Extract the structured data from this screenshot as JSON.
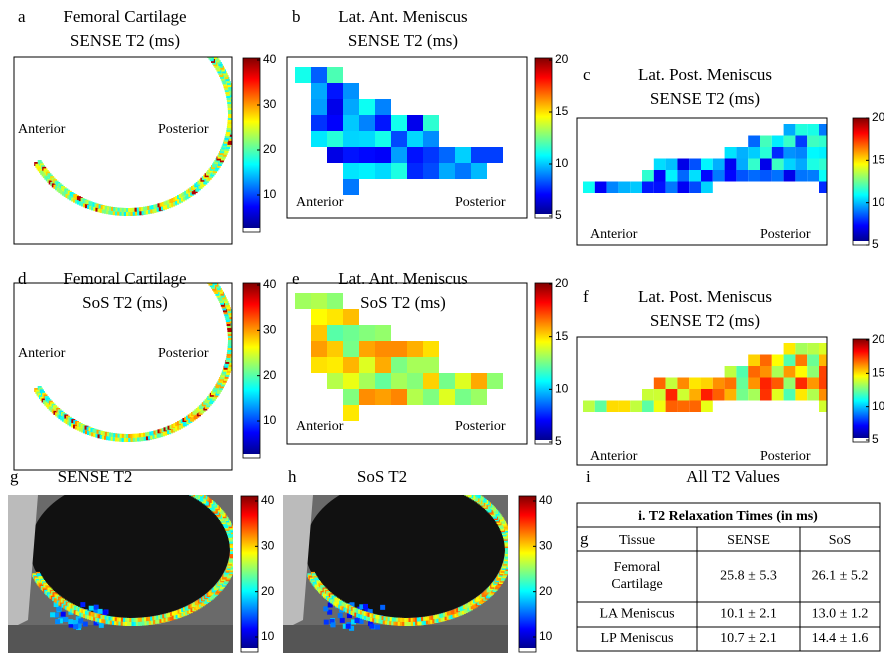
{
  "panels": [
    {
      "letter": "a",
      "title": [
        "Femoral Cartilage",
        "SENSE T2 (ms)"
      ],
      "labels": [
        "Anterior",
        "Posterior"
      ],
      "colorbar_ticks": [
        40,
        30,
        20,
        10
      ]
    },
    {
      "letter": "b",
      "title": [
        "Lat. Ant. Meniscus",
        "SENSE T2 (ms)"
      ],
      "labels": [
        "Anterior",
        "Posterior"
      ],
      "colorbar_ticks": [
        20,
        15,
        10,
        5
      ]
    },
    {
      "letter": "c",
      "title": [
        "Lat. Post. Meniscus",
        "SENSE T2 (ms)"
      ],
      "labels": [
        "Anterior",
        "Posterior"
      ],
      "colorbar_ticks": [
        20,
        15,
        10,
        5
      ]
    },
    {
      "letter": "d",
      "title": [
        "Femoral Cartilage",
        "SoS T2 (ms)"
      ],
      "labels": [
        "Anterior",
        "Posterior"
      ],
      "colorbar_ticks": [
        40,
        30,
        20,
        10
      ]
    },
    {
      "letter": "e",
      "title": [
        "Lat. Ant. Meniscus",
        "SoS T2 (ms)"
      ],
      "labels": [
        "Anterior",
        "Posterior"
      ],
      "colorbar_ticks": [
        20,
        15,
        10,
        5
      ]
    },
    {
      "letter": "f",
      "title": [
        "Lat. Post. Meniscus",
        "SENSE T2 (ms)"
      ],
      "labels": [
        "Anterior",
        "Posterior"
      ],
      "colorbar_ticks": [
        20,
        15,
        10,
        5
      ]
    }
  ],
  "overlays": [
    {
      "letter": "g",
      "title": "SENSE T2",
      "colorbar_ticks": [
        40,
        30,
        20,
        10
      ]
    },
    {
      "letter": "h",
      "title": "SoS T2",
      "colorbar_ticks": [
        40,
        30,
        20,
        10
      ]
    }
  ],
  "table": {
    "letter": "i",
    "heading": "All T2 Values",
    "caption": "i. T2 Relaxation Times (in ms)",
    "stray": "g",
    "header": [
      "Tissue",
      "SENSE",
      "SoS"
    ],
    "rows": [
      [
        [
          "Femoral",
          "Cartilage"
        ],
        "25.8 ± 5.3",
        "26.1 ± 5.2"
      ],
      [
        "LA Meniscus",
        "10.1 ± 2.1",
        "13.0 ± 1.2"
      ],
      [
        "LP Meniscus",
        "10.7 ± 2.1",
        "14.4 ± 1.6"
      ]
    ]
  }
}
